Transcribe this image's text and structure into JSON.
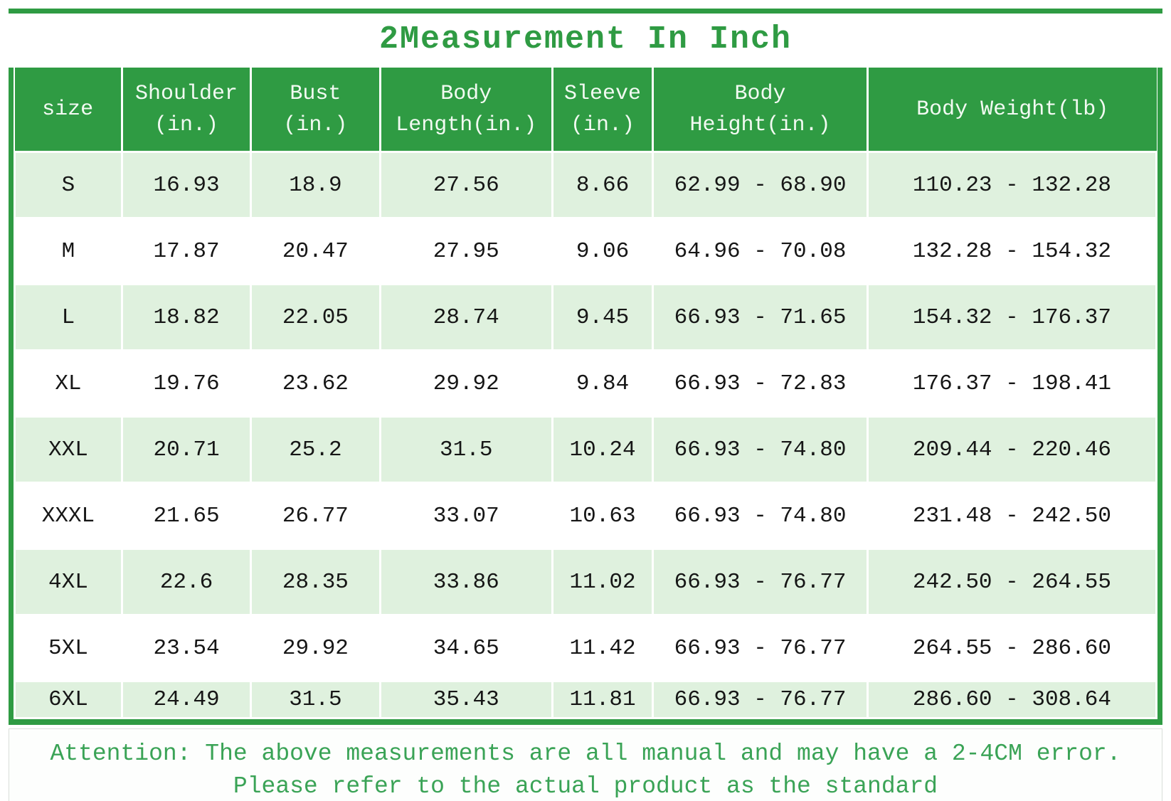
{
  "title": "2Measurement In Inch",
  "colors": {
    "accent_green": "#2f9b43",
    "row_light_green": "#dff1de",
    "header_text": "#f2faf2",
    "cell_text": "#161616",
    "note_green": "#3aa356",
    "note_border": "#d9ded9"
  },
  "chart_data": {
    "type": "table",
    "title": "2Measurement In Inch",
    "columns": [
      "size",
      "Shoulder (in.)",
      "Bust (in.)",
      "Body Length(in.)",
      "Sleeve (in.)",
      "Body Height(in.)",
      "Body Weight(lb)"
    ],
    "rows": [
      [
        "S",
        "16.93",
        "18.9",
        "27.56",
        "8.66",
        "62.99 - 68.90",
        "110.23 - 132.28"
      ],
      [
        "M",
        "17.87",
        "20.47",
        "27.95",
        "9.06",
        "64.96 - 70.08",
        "132.28 - 154.32"
      ],
      [
        "L",
        "18.82",
        "22.05",
        "28.74",
        "9.45",
        "66.93 - 71.65",
        "154.32 - 176.37"
      ],
      [
        "XL",
        "19.76",
        "23.62",
        "29.92",
        "9.84",
        "66.93 - 72.83",
        "176.37 - 198.41"
      ],
      [
        "XXL",
        "20.71",
        "25.2",
        "31.5",
        "10.24",
        "66.93 - 74.80",
        "209.44 - 220.46"
      ],
      [
        "XXXL",
        "21.65",
        "26.77",
        "33.07",
        "10.63",
        "66.93 - 74.80",
        "231.48 - 242.50"
      ],
      [
        "4XL",
        "22.6",
        "28.35",
        "33.86",
        "11.02",
        "66.93 - 76.77",
        "242.50 - 264.55"
      ],
      [
        "5XL",
        "23.54",
        "29.92",
        "34.65",
        "11.42",
        "66.93 - 76.77",
        "264.55 - 286.60"
      ],
      [
        "6XL",
        "24.49",
        "31.5",
        "35.43",
        "11.81",
        "66.93 - 76.77",
        "286.60 - 308.64"
      ]
    ]
  },
  "table": {
    "header": [
      {
        "lines": [
          "size"
        ]
      },
      {
        "lines": [
          "Shoulder",
          "(in.)"
        ]
      },
      {
        "lines": [
          "Bust",
          "(in.)"
        ]
      },
      {
        "lines": [
          "Body",
          "Length(in.)"
        ]
      },
      {
        "lines": [
          "Sleeve",
          "(in.)"
        ]
      },
      {
        "lines": [
          "Body",
          "Height(in.)"
        ]
      },
      {
        "lines": [
          "Body Weight(lb)"
        ]
      }
    ],
    "col_widths_pct": [
      9.4,
      11.3,
      11.3,
      15.1,
      8.8,
      18.8,
      25.3
    ],
    "rows": [
      [
        "S",
        "16.93",
        "18.9",
        "27.56",
        "8.66",
        "62.99 - 68.90",
        "110.23 - 132.28"
      ],
      [
        "M",
        "17.87",
        "20.47",
        "27.95",
        "9.06",
        "64.96 - 70.08",
        "132.28 - 154.32"
      ],
      [
        "L",
        "18.82",
        "22.05",
        "28.74",
        "9.45",
        "66.93 - 71.65",
        "154.32 - 176.37"
      ],
      [
        "XL",
        "19.76",
        "23.62",
        "29.92",
        "9.84",
        "66.93 - 72.83",
        "176.37 - 198.41"
      ],
      [
        "XXL",
        "20.71",
        "25.2",
        "31.5",
        "10.24",
        "66.93 - 74.80",
        "209.44 - 220.46"
      ],
      [
        "XXXL",
        "21.65",
        "26.77",
        "33.07",
        "10.63",
        "66.93 - 74.80",
        "231.48 - 242.50"
      ],
      [
        "4XL",
        "22.6",
        "28.35",
        "33.86",
        "11.02",
        "66.93 - 76.77",
        "242.50 - 264.55"
      ],
      [
        "5XL",
        "23.54",
        "29.92",
        "34.65",
        "11.42",
        "66.93 - 76.77",
        "264.55 - 286.60"
      ],
      [
        "6XL",
        "24.49",
        "31.5",
        "35.43",
        "11.81",
        "66.93 - 76.77",
        "286.60 - 308.64"
      ]
    ]
  },
  "note": {
    "line1": "Attention: The above measurements are all manual and may have a 2-4CM error.",
    "line2": "Please refer to the actual product as the standard"
  }
}
